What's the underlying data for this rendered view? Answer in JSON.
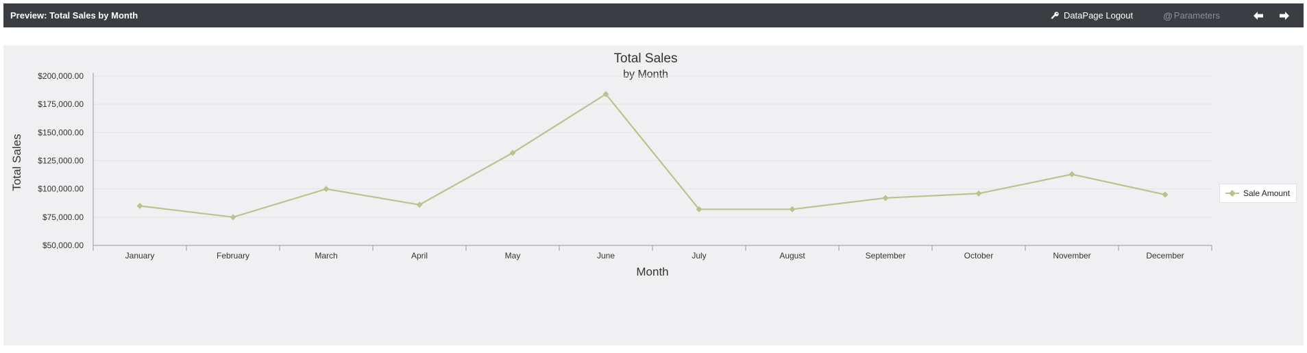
{
  "header": {
    "title": "Preview: Total Sales by Month",
    "logout_label": "DataPage Logout",
    "parameters_label": "Parameters",
    "parameters_symbol": "@",
    "key_icon": "key-icon",
    "prev_icon": "arrow-left-icon",
    "next_icon": "arrow-right-icon"
  },
  "colors": {
    "topbar": "#3a3d42",
    "panel": "#f0eff2",
    "series": "#b5c58c",
    "grid": "#e4e3e7",
    "axis": "#9a9a9e"
  },
  "chart_data": {
    "type": "line",
    "title": "Total Sales",
    "subtitle": "by Month",
    "xlabel": "Month",
    "ylabel": "Total Sales",
    "categories": [
      "January",
      "February",
      "March",
      "April",
      "May",
      "June",
      "July",
      "August",
      "September",
      "October",
      "November",
      "December"
    ],
    "series": [
      {
        "name": "Sale Amount",
        "values": [
          85000,
          75000,
          100000,
          86000,
          132000,
          184000,
          82000,
          82000,
          92000,
          96000,
          113000,
          95000
        ]
      }
    ],
    "ylim": [
      50000,
      200000
    ],
    "yticks": [
      50000,
      75000,
      100000,
      125000,
      150000,
      175000,
      200000
    ],
    "ytick_labels": [
      "$50,000.00",
      "$75,000.00",
      "$100,000.00",
      "$125,000.00",
      "$150,000.00",
      "$175,000.00",
      "$200,000.00"
    ],
    "grid": true,
    "legend_position": "right",
    "marker": "diamond"
  }
}
